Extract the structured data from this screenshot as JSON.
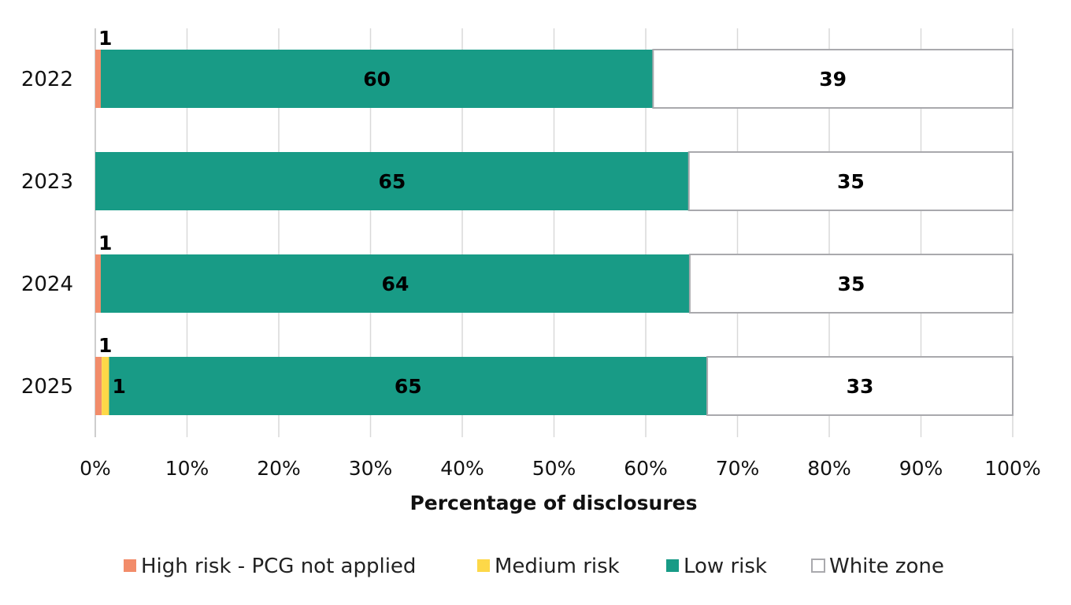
{
  "chart_data": {
    "type": "bar",
    "orientation": "horizontal",
    "stacked": true,
    "title": "",
    "xlabel": "Percentage of disclosures",
    "ylabel": "",
    "xlim": [
      0,
      100
    ],
    "x_ticks": [
      "0%",
      "10%",
      "20%",
      "30%",
      "40%",
      "50%",
      "60%",
      "70%",
      "80%",
      "90%",
      "100%"
    ],
    "grid": true,
    "legend_position": "bottom",
    "categories": [
      "2022",
      "2023",
      "2024",
      "2025"
    ],
    "series": [
      {
        "name": "High risk - PCG not applied",
        "color": "#F28C6A",
        "values": [
          0.6,
          0,
          0.6,
          0.7
        ]
      },
      {
        "name": "Medium risk",
        "color": "#FDD848",
        "values": [
          0,
          0,
          0,
          0.8
        ]
      },
      {
        "name": "Low risk",
        "color": "#189B86",
        "values": [
          60.2,
          64.7,
          64.2,
          65.2
        ]
      },
      {
        "name": "White zone",
        "color": "#FFFFFF",
        "values": [
          39.2,
          35.3,
          35.2,
          33.3
        ]
      }
    ],
    "data_labels": [
      {
        "category": "2022",
        "series": "High risk - PCG not applied",
        "text": "1",
        "placement": "above"
      },
      {
        "category": "2022",
        "series": "Low risk",
        "text": "60",
        "placement": "center"
      },
      {
        "category": "2022",
        "series": "White zone",
        "text": "39",
        "placement": "center"
      },
      {
        "category": "2023",
        "series": "Low risk",
        "text": "65",
        "placement": "center"
      },
      {
        "category": "2023",
        "series": "White zone",
        "text": "35",
        "placement": "center"
      },
      {
        "category": "2024",
        "series": "High risk - PCG not applied",
        "text": "1",
        "placement": "above"
      },
      {
        "category": "2024",
        "series": "Low risk",
        "text": "64",
        "placement": "center"
      },
      {
        "category": "2024",
        "series": "White zone",
        "text": "35",
        "placement": "center"
      },
      {
        "category": "2025",
        "series": "High risk - PCG not applied",
        "text": "1",
        "placement": "above"
      },
      {
        "category": "2025",
        "series": "Medium risk",
        "text": "1",
        "placement": "right"
      },
      {
        "category": "2025",
        "series": "Low risk",
        "text": "65",
        "placement": "center"
      },
      {
        "category": "2025",
        "series": "White zone",
        "text": "33",
        "placement": "center"
      }
    ]
  }
}
